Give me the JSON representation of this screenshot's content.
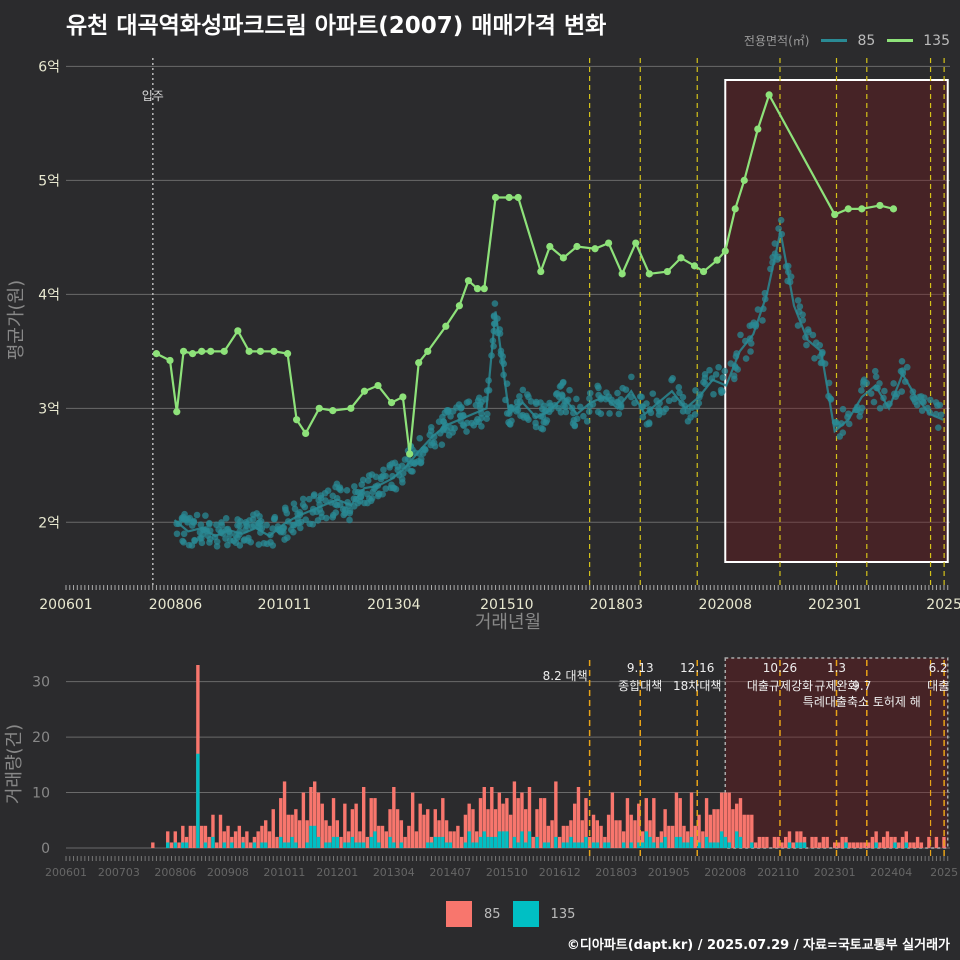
{
  "title": "유천 대곡역화성파크드림 아파트(2007) 매매가격 변화",
  "legend": {
    "label": "전용면적(㎡)",
    "items": [
      {
        "name": "85",
        "color": "#2a8a94"
      },
      {
        "name": "135",
        "color": "#8ee27a"
      }
    ]
  },
  "footer": "©디아파트(dapt.kr) / 2025.07.29 / 자료=국토교통부 실거래가",
  "chart_data": [
    {
      "type": "line",
      "ylabel": "평균가(원)",
      "xlabel": "거래년월",
      "y_ticks": [
        2,
        3,
        4,
        5,
        6
      ],
      "y_tick_labels": [
        "2억",
        "3억",
        "4억",
        "5억",
        "6억"
      ],
      "ylim": [
        1.45,
        6.1
      ],
      "xlim": [
        2006.0,
        2025.55
      ],
      "x_ticks": [
        2006.0,
        2008.42,
        2010.83,
        2013.25,
        2015.75,
        2018.17,
        2020.58,
        2023.0,
        2025.42
      ],
      "x_tick_labels": [
        "200601",
        "200806",
        "201011",
        "201304",
        "201510",
        "201803",
        "202008",
        "202301",
        "2025"
      ],
      "movein": {
        "x": 2007.92,
        "label": "입주"
      },
      "policy_lines": [
        2017.58,
        2018.7,
        2019.96,
        2021.79,
        2023.04,
        2023.71,
        2025.12,
        2025.42
      ],
      "highlight": [
        2020.58,
        2025.5
      ],
      "series": [
        {
          "name": "85",
          "color": "#2a8a94",
          "x": [
            2008.4,
            2008.7,
            2009.0,
            2009.3,
            2009.6,
            2009.9,
            2010.2,
            2010.5,
            2010.8,
            2011.1,
            2011.4,
            2011.7,
            2012.0,
            2012.3,
            2012.6,
            2012.9,
            2013.2,
            2013.5,
            2013.8,
            2014.1,
            2014.4,
            2014.7,
            2015.0,
            2015.3,
            2015.5,
            2015.8,
            2016.1,
            2016.4,
            2016.7,
            2017.0,
            2017.3,
            2017.6,
            2017.9,
            2018.2,
            2018.5,
            2018.8,
            2019.1,
            2019.4,
            2019.7,
            2020.0,
            2020.3,
            2020.6,
            2020.9,
            2021.2,
            2021.5,
            2021.8,
            2022.1,
            2022.4,
            2022.7,
            2023.0,
            2023.3,
            2023.6,
            2023.9,
            2024.2,
            2024.5,
            2024.8,
            2025.1,
            2025.4
          ],
          "y": [
            2.02,
            1.92,
            1.95,
            1.88,
            1.93,
            1.9,
            1.95,
            1.88,
            1.98,
            2.05,
            2.1,
            2.15,
            2.2,
            2.15,
            2.3,
            2.32,
            2.38,
            2.48,
            2.62,
            2.75,
            2.85,
            2.9,
            2.95,
            3.0,
            3.85,
            2.95,
            3.05,
            2.92,
            2.98,
            3.1,
            2.95,
            3.05,
            3.1,
            3.0,
            3.15,
            2.95,
            3.05,
            3.15,
            3.0,
            3.1,
            3.25,
            3.2,
            3.5,
            3.65,
            4.0,
            4.55,
            3.9,
            3.6,
            3.5,
            2.8,
            2.9,
            3.1,
            3.2,
            3.0,
            3.3,
            3.1,
            2.95,
            2.9
          ]
        },
        {
          "name": "135",
          "color": "#8ee27a",
          "x": [
            2008.0,
            2008.3,
            2008.45,
            2008.6,
            2008.8,
            2009.0,
            2009.2,
            2009.5,
            2009.8,
            2010.05,
            2010.3,
            2010.6,
            2010.9,
            2011.1,
            2011.3,
            2011.6,
            2011.9,
            2012.3,
            2012.6,
            2012.9,
            2013.2,
            2013.45,
            2013.6,
            2013.8,
            2014.0,
            2014.4,
            2014.7,
            2014.9,
            2015.1,
            2015.25,
            2015.5,
            2015.8,
            2016.0,
            2016.5,
            2016.7,
            2017.0,
            2017.3,
            2017.7,
            2018.0,
            2018.3,
            2018.6,
            2018.9,
            2019.3,
            2019.6,
            2019.9,
            2020.1,
            2020.4,
            2020.58,
            2020.8,
            2021.0,
            2021.3,
            2021.55,
            2023.0,
            2023.3,
            2023.6,
            2024.0,
            2024.3
          ],
          "y": [
            3.48,
            3.42,
            2.97,
            3.5,
            3.48,
            3.5,
            3.5,
            3.5,
            3.68,
            3.5,
            3.5,
            3.5,
            3.48,
            2.9,
            2.78,
            3.0,
            2.98,
            3.0,
            3.15,
            3.2,
            3.05,
            3.1,
            2.6,
            3.4,
            3.5,
            3.72,
            3.9,
            4.12,
            4.05,
            4.05,
            4.85,
            4.85,
            4.85,
            4.2,
            4.42,
            4.32,
            4.42,
            4.4,
            4.45,
            4.18,
            4.45,
            4.18,
            4.2,
            4.32,
            4.25,
            4.2,
            4.3,
            4.38,
            4.75,
            5.0,
            5.45,
            5.75,
            4.7,
            4.75,
            4.75,
            4.78,
            4.75
          ]
        }
      ]
    },
    {
      "type": "bar",
      "ylabel": "거래량(건)",
      "y_ticks": [
        0,
        10,
        20,
        30
      ],
      "ylim": [
        0,
        33
      ],
      "x_tick_labels": [
        "200601",
        "200703",
        "200806",
        "200908",
        "201011",
        "201201",
        "201304",
        "201407",
        "201510",
        "201612",
        "201803",
        "201905",
        "202008",
        "202110",
        "202301",
        "202404",
        "2025"
      ],
      "x_ticks": [
        2006.0,
        2007.17,
        2008.42,
        2009.58,
        2010.83,
        2012.0,
        2013.25,
        2014.5,
        2015.75,
        2016.92,
        2018.17,
        2019.33,
        2020.58,
        2021.75,
        2023.0,
        2024.25,
        2025.42
      ],
      "annotations": [
        {
          "x": 2017.58,
          "date": "8.2 대책",
          "text": ""
        },
        {
          "x": 2018.7,
          "date": "9.13",
          "text": "종합대책"
        },
        {
          "x": 2019.96,
          "date": "12.16",
          "text": "18차대책"
        },
        {
          "x": 2021.79,
          "date": "10.26",
          "text": "대출규제강화"
        },
        {
          "x": 2023.04,
          "date": "1.3",
          "text": "규제완화"
        },
        {
          "x": 2023.71,
          "date": "9.7",
          "text": "특례대출축소 토허제 해"
        },
        {
          "x": 2025.42,
          "date": "6.2",
          "text": "대출"
        }
      ],
      "series": [
        {
          "name": "85",
          "color": "#f8766d"
        },
        {
          "name": "135",
          "color": "#00bfc4"
        }
      ],
      "highlight": [
        2020.58,
        2025.5
      ],
      "peak": {
        "x": 2008.95,
        "total": 33,
        "s135": 17
      },
      "seed": 7
    }
  ]
}
